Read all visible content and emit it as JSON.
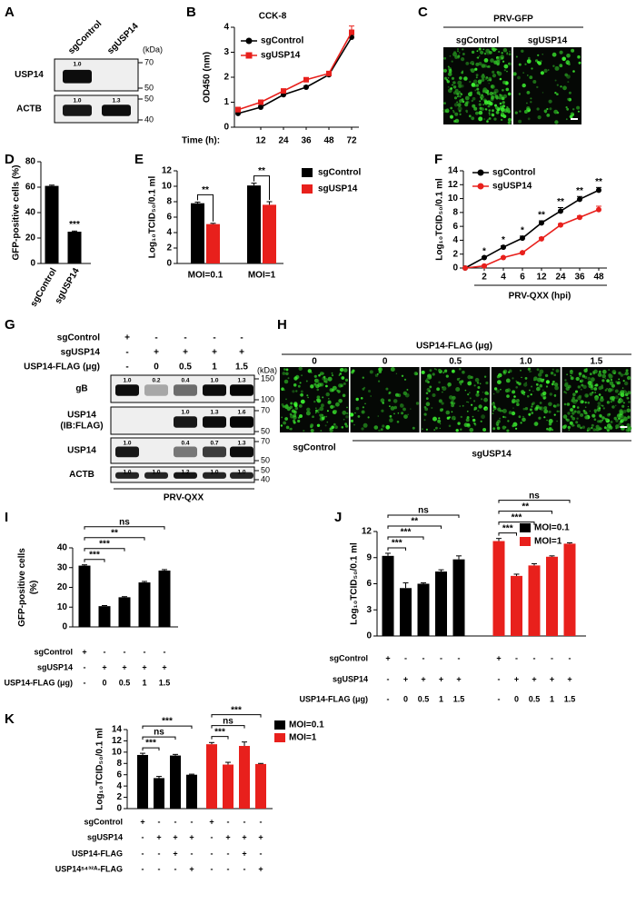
{
  "chart_data": [
    {
      "panel": "B",
      "type": "line",
      "title": "CCK-8",
      "ylabel": "OD450 (nm)",
      "xlabel": "Time (h):",
      "categories": [
        null,
        "12",
        "24",
        "36",
        "48",
        "72"
      ],
      "series": [
        {
          "name": "sgControl",
          "color": "#000000",
          "marker": "circle",
          "values": [
            0.55,
            0.8,
            1.3,
            1.6,
            2.1,
            3.6
          ],
          "errors": [
            0.05,
            0.05,
            0.05,
            0.05,
            0.05,
            0.1
          ]
        },
        {
          "name": "sgUSP14",
          "color": "#e8201c",
          "marker": "square",
          "values": [
            0.7,
            1.0,
            1.45,
            1.9,
            2.15,
            3.8
          ],
          "errors": [
            0.1,
            0.05,
            0.05,
            0.05,
            0.05,
            0.25
          ]
        }
      ],
      "ylim": [
        0,
        4
      ],
      "yticks": [
        0,
        1,
        2,
        3,
        4
      ]
    },
    {
      "panel": "D",
      "type": "bar",
      "ylabel": "GFP-positive cells (%)",
      "categories": [
        "sgControl",
        "sgUSP14"
      ],
      "values": [
        61,
        25
      ],
      "errors": [
        0.6,
        0.5
      ],
      "annotations": [
        null,
        "***"
      ],
      "color": "#000000",
      "ylim": [
        0,
        80
      ],
      "yticks": [
        0,
        20,
        40,
        60,
        80
      ]
    },
    {
      "panel": "E",
      "type": "grouped_bar",
      "ylabel": "Log₁₀TCID₅₀/0.1 ml",
      "categories": [
        "MOI=0.1",
        "MOI=1"
      ],
      "annotations": [
        "**",
        "**"
      ],
      "series": [
        {
          "name": "sgControl",
          "color": "#000000",
          "values": [
            7.8,
            10.1
          ],
          "errors": [
            0.15,
            0.3
          ]
        },
        {
          "name": "sgUSP14",
          "color": "#e8201c",
          "values": [
            5.1,
            7.6
          ],
          "errors": [
            0.1,
            0.4
          ]
        }
      ],
      "ylim": [
        0,
        12
      ],
      "yticks": [
        0,
        2,
        4,
        6,
        8,
        10,
        12
      ]
    },
    {
      "panel": "F",
      "type": "line",
      "ylabel": "Log₁₀TCID₅₀/0.1 ml",
      "xlabel": "PRV-QXX (hpi)",
      "categories": [
        null,
        "2",
        "4",
        "6",
        "12",
        "24",
        "36",
        "48"
      ],
      "annotations": [
        null,
        "*",
        "*",
        "*",
        "**",
        "**",
        "**",
        "**"
      ],
      "series": [
        {
          "name": "sgControl",
          "color": "#000000",
          "marker": "circle",
          "values": [
            0,
            1.5,
            3,
            4.3,
            6.5,
            8.2,
            9.9,
            11.2
          ],
          "errors": [
            0,
            0.1,
            0.2,
            0.3,
            0.3,
            0.5,
            0.4,
            0.4
          ]
        },
        {
          "name": "sgUSP14",
          "color": "#e8201c",
          "marker": "circle",
          "values": [
            0,
            0.3,
            1.5,
            2.2,
            4.2,
            6.2,
            7.3,
            8.4
          ],
          "errors": [
            0,
            0.1,
            0.1,
            0.1,
            0.2,
            0.2,
            0.2,
            0.5
          ]
        }
      ],
      "ylim": [
        0,
        14
      ],
      "yticks": [
        0,
        2,
        4,
        6,
        8,
        10,
        12,
        14
      ]
    },
    {
      "panel": "I",
      "type": "bar",
      "ylabel": [
        "GFP-positive cells",
        "(%)"
      ],
      "values": [
        31,
        10.5,
        15,
        22.5,
        28.5
      ],
      "errors": [
        0.4,
        0.3,
        0.3,
        0.5,
        0.5
      ],
      "comparisons": [
        "***",
        "***",
        "**",
        "ns"
      ],
      "color": "#000000",
      "conditions": [
        {
          "name": "sgControl",
          "values": [
            "+",
            "-",
            "-",
            "-",
            "-"
          ]
        },
        {
          "name": "sgUSP14",
          "values": [
            "-",
            "+",
            "+",
            "+",
            "+"
          ]
        },
        {
          "name": "USP14-FLAG (μg)",
          "values": [
            "-",
            "0",
            "0.5",
            "1",
            "1.5"
          ]
        }
      ],
      "ylim": [
        0,
        40
      ],
      "yticks": [
        0,
        10,
        20,
        30,
        40
      ]
    },
    {
      "panel": "J",
      "type": "bar",
      "ylabel": "Log₁₀TCID₅₀/0.1 ml",
      "series": [
        {
          "name": "MOI=0.1",
          "color": "#000000",
          "values": [
            9.2,
            5.5,
            6.0,
            7.4,
            8.8
          ],
          "errors": [
            0.3,
            0.6,
            0.1,
            0.2,
            0.4
          ],
          "comparisons": [
            "***",
            "***",
            "**",
            "ns"
          ]
        },
        {
          "name": "MOI=1",
          "color": "#e8201c",
          "values": [
            10.9,
            6.9,
            8.1,
            9.1,
            10.6
          ],
          "errors": [
            0.3,
            0.2,
            0.2,
            0.1,
            0.1
          ],
          "comparisons": [
            "***",
            "***",
            "**",
            "ns"
          ]
        }
      ],
      "conditions": [
        {
          "name": "sgControl",
          "values": [
            "+",
            "-",
            "-",
            "-",
            "-",
            "+",
            "-",
            "-",
            "-",
            "-"
          ]
        },
        {
          "name": "sgUSP14",
          "values": [
            "-",
            "+",
            "+",
            "+",
            "+",
            "-",
            "+",
            "+",
            "+",
            "+"
          ]
        },
        {
          "name": "USP14-FLAG (μg)",
          "values": [
            "-",
            "0",
            "0.5",
            "1",
            "1.5",
            "-",
            "0",
            "0.5",
            "1",
            "1.5"
          ]
        }
      ],
      "ylim": [
        0,
        12
      ],
      "yticks": [
        0,
        3,
        6,
        9,
        12
      ]
    },
    {
      "panel": "K",
      "type": "bar",
      "ylabel": "Log₁₀TCID₅₀/0.1 ml",
      "series": [
        {
          "name": "MOI=0.1",
          "color": "#000000",
          "values": [
            9.5,
            5.4,
            9.4,
            6.0
          ],
          "errors": [
            0.3,
            0.3,
            0.2,
            0.1
          ],
          "comparisons": [
            "***",
            "ns",
            "***"
          ]
        },
        {
          "name": "MOI=1",
          "color": "#e8201c",
          "values": [
            11.4,
            7.8,
            11.1,
            7.9
          ],
          "errors": [
            0.3,
            0.4,
            0.7,
            0.1
          ],
          "comparisons": [
            "***",
            "ns",
            "***"
          ]
        }
      ],
      "conditions": [
        {
          "name": "sgControl",
          "values": [
            "+",
            "-",
            "-",
            "-",
            "+",
            "-",
            "-",
            "-"
          ]
        },
        {
          "name": "sgUSP14",
          "values": [
            "-",
            "+",
            "+",
            "+",
            "-",
            "+",
            "+",
            "+"
          ]
        },
        {
          "name": "USP14-FLAG",
          "values": [
            "-",
            "-",
            "+",
            "-",
            "-",
            "-",
            "+",
            "-"
          ]
        },
        {
          "name": "USP14ˢ⁴³²ᴬ-FLAG",
          "values": [
            "-",
            "-",
            "-",
            "+",
            "-",
            "-",
            "-",
            "+"
          ]
        }
      ],
      "ylim": [
        0,
        14
      ],
      "yticks": [
        0,
        2,
        4,
        6,
        8,
        10,
        12,
        14
      ]
    }
  ],
  "blots": [
    {
      "panel": "A",
      "lanes": [
        "sgControl",
        "sgUSP14"
      ],
      "unit": "(kDa)",
      "rows": [
        {
          "name": "USP14",
          "quant": [
            "1.0",
            null
          ],
          "markers": [
            70,
            50
          ]
        },
        {
          "name": "ACTB",
          "quant": [
            "1.0",
            "1.3"
          ],
          "markers": [
            50,
            40
          ]
        }
      ]
    },
    {
      "panel": "G",
      "unit": "(kDa)",
      "footer": "PRV-QXX",
      "conditions": [
        {
          "name": "sgControl",
          "values": [
            "+",
            "-",
            "-",
            "-",
            "-"
          ]
        },
        {
          "name": "sgUSP14",
          "values": [
            "-",
            "+",
            "+",
            "+",
            "+"
          ]
        },
        {
          "name": "USP14-FLAG (μg)",
          "values": [
            "-",
            "0",
            "0.5",
            "1",
            "1.5"
          ]
        }
      ],
      "rows": [
        {
          "name": "gB",
          "quant": [
            "1.0",
            "0.2",
            "0.4",
            "1.0",
            "1.3"
          ],
          "markers": [
            150,
            100
          ]
        },
        {
          "name": [
            "USP14",
            "(IB:FLAG)"
          ],
          "quant": [
            null,
            null,
            "1.0",
            "1.3",
            "1.6"
          ],
          "markers": [
            70,
            50
          ]
        },
        {
          "name": "USP14",
          "quant": [
            "1.0",
            null,
            "0.4",
            "0.7",
            "1.3"
          ],
          "markers": [
            70,
            50
          ]
        },
        {
          "name": "ACTB",
          "quant": [
            "1.0",
            "1.0",
            "1.2",
            "1.0",
            "1.0"
          ],
          "markers": [
            50,
            40
          ]
        }
      ]
    }
  ],
  "images": [
    {
      "panel": "C",
      "title": "PRV-GFP",
      "labels": [
        "sgControl",
        "sgUSP14"
      ]
    },
    {
      "panel": "H",
      "title": "USP14-FLAG (μg)",
      "labels": [
        "0",
        "0",
        "0.5",
        "1.0",
        "1.5"
      ],
      "groups": [
        "sgControl",
        "sgUSP14"
      ]
    }
  ]
}
